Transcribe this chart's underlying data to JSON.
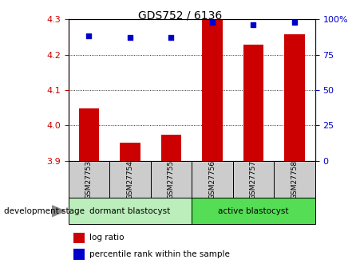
{
  "title": "GDS752 / 6136",
  "samples": [
    "GSM27753",
    "GSM27754",
    "GSM27755",
    "GSM27756",
    "GSM27757",
    "GSM27758"
  ],
  "log_ratio": [
    4.048,
    3.952,
    3.974,
    4.298,
    4.228,
    4.258
  ],
  "log_ratio_base": 3.9,
  "percentile_rank": [
    88,
    87,
    87,
    98,
    96,
    98
  ],
  "ylim_left": [
    3.9,
    4.3
  ],
  "ylim_right": [
    0,
    100
  ],
  "yticks_left": [
    3.9,
    4.0,
    4.1,
    4.2,
    4.3
  ],
  "yticks_right": [
    0,
    25,
    50,
    75,
    100
  ],
  "bar_color": "#cc0000",
  "dot_color": "#0000cc",
  "group1_label": "dormant blastocyst",
  "group2_label": "active blastocyst",
  "group1_indices": [
    0,
    1,
    2
  ],
  "group2_indices": [
    3,
    4,
    5
  ],
  "group1_color": "#bbeebb",
  "group2_color": "#55dd55",
  "stage_label": "development stage",
  "legend_bar": "log ratio",
  "legend_dot": "percentile rank within the sample",
  "tick_label_color_left": "#cc0000",
  "tick_label_color_right": "#0000cc",
  "xlabel_box_color": "#cccccc",
  "bar_width": 0.5,
  "fig_width": 4.51,
  "fig_height": 3.45,
  "fig_dpi": 100
}
